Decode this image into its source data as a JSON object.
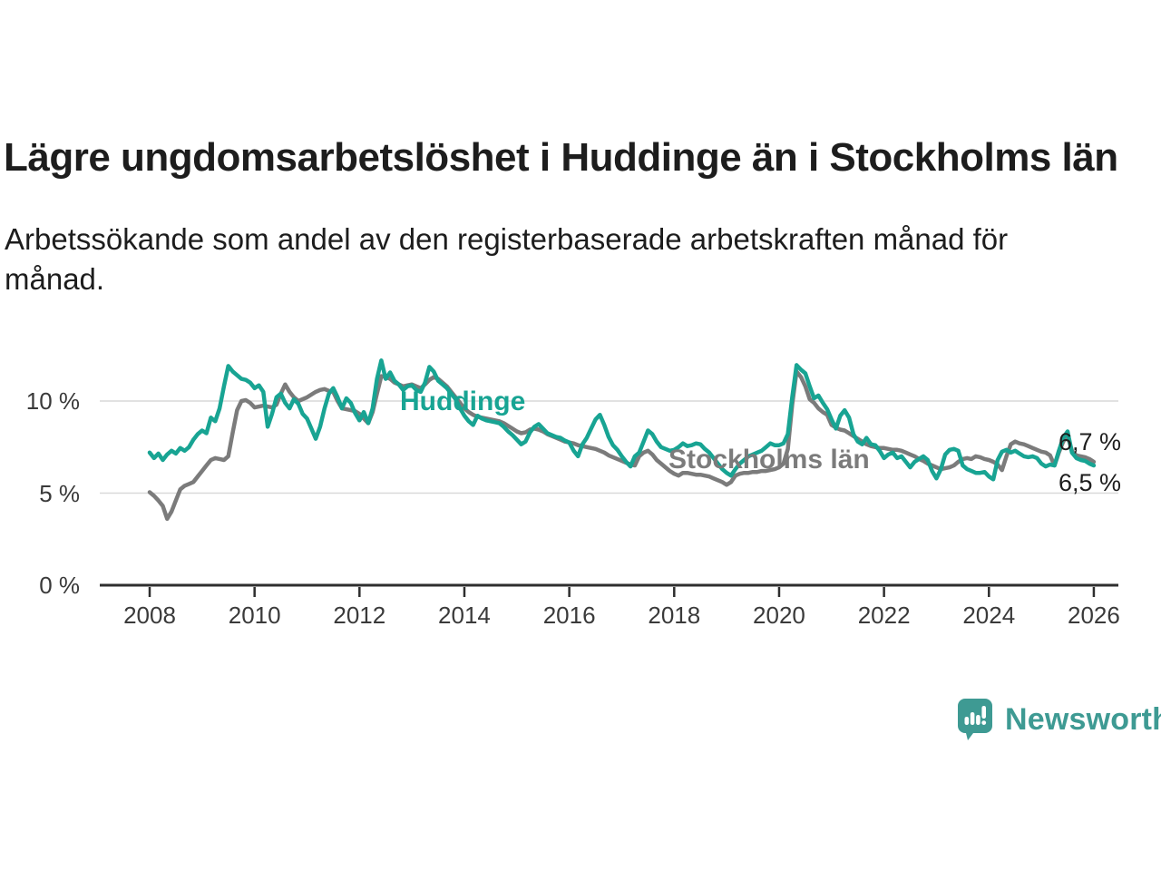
{
  "header": {
    "title": "Lägre ungdomsarbetslöshet i Huddinge än i Stockholms län",
    "subtitle": "Arbetssökande som andel av den registerbaserade arbetskraften månad för månad."
  },
  "colors": {
    "huddinge": "#18a493",
    "stockholm": "#7b7b7b",
    "grid": "#d9d9d9",
    "axis": "#2e2e2e",
    "text": "#1d1d1d",
    "tick_text": "#3a3a3a",
    "brand_teal": "#3e9a93"
  },
  "chart_data": {
    "type": "line",
    "title": "Lägre ungdomsarbetslöshet i Huddinge än i Stockholms län",
    "subtitle": "Arbetssökande som andel av den registerbaserade arbetskraften månad för månad.",
    "unit": "%",
    "grid": "horizontal",
    "legend_position": "inline-labels",
    "x_axis": {
      "tick_years": [
        2008,
        2010,
        2012,
        2014,
        2016,
        2018,
        2020,
        2022,
        2024,
        2026
      ],
      "tick_labels": [
        "2008",
        "2010",
        "2012",
        "2014",
        "2016",
        "2018",
        "2020",
        "2022",
        "2024",
        "2026"
      ],
      "range": [
        2007.05,
        2026.45
      ]
    },
    "y_axis": {
      "tick_values": [
        0,
        5,
        10
      ],
      "tick_labels": [
        "0 %",
        "5 %",
        "10 %"
      ],
      "gridline_values": [
        5,
        10
      ],
      "range": [
        0,
        13.2
      ]
    },
    "series": [
      {
        "name": "Stockholms län",
        "color": "#7b7b7b",
        "end_label": "6,7 %",
        "last_value": 6.7,
        "start_year": 2008,
        "step_months": 1,
        "values": [
          5.05,
          4.85,
          4.6,
          4.3,
          3.6,
          4.0,
          4.6,
          5.2,
          5.4,
          5.5,
          5.6,
          5.9,
          6.2,
          6.5,
          6.8,
          6.9,
          6.85,
          6.8,
          7.0,
          8.3,
          9.5,
          10.0,
          10.05,
          9.9,
          9.65,
          9.7,
          9.75,
          9.7,
          9.65,
          9.8,
          10.4,
          10.9,
          10.5,
          10.2,
          10.0,
          10.1,
          10.2,
          10.35,
          10.5,
          10.6,
          10.65,
          10.55,
          10.5,
          10.0,
          9.6,
          9.55,
          9.5,
          9.45,
          9.3,
          9.05,
          8.8,
          9.4,
          10.4,
          11.35,
          11.3,
          11.2,
          11.0,
          10.9,
          10.8,
          10.85,
          10.9,
          10.8,
          10.7,
          10.9,
          11.15,
          11.3,
          11.2,
          11.0,
          10.8,
          10.5,
          10.2,
          9.9,
          9.6,
          9.4,
          9.25,
          9.15,
          9.1,
          9.05,
          9.0,
          8.95,
          8.9,
          8.8,
          8.65,
          8.5,
          8.35,
          8.25,
          8.3,
          8.45,
          8.5,
          8.45,
          8.35,
          8.2,
          8.1,
          8.0,
          7.9,
          7.8,
          7.75,
          7.7,
          7.6,
          7.55,
          7.5,
          7.45,
          7.4,
          7.3,
          7.2,
          7.05,
          6.95,
          6.85,
          6.75,
          6.65,
          6.55,
          6.5,
          7.0,
          7.2,
          7.3,
          7.1,
          6.8,
          6.6,
          6.4,
          6.2,
          6.05,
          5.95,
          6.1,
          6.1,
          6.05,
          6.0,
          6.0,
          5.95,
          5.9,
          5.8,
          5.7,
          5.6,
          5.45,
          5.6,
          5.95,
          6.05,
          6.1,
          6.1,
          6.15,
          6.15,
          6.2,
          6.2,
          6.25,
          6.3,
          6.4,
          6.6,
          7.4,
          9.8,
          11.6,
          11.3,
          10.8,
          10.1,
          9.9,
          9.6,
          9.4,
          9.25,
          8.7,
          8.55,
          8.45,
          8.4,
          8.25,
          8.1,
          7.95,
          7.8,
          7.65,
          7.55,
          7.5,
          7.45,
          7.45,
          7.4,
          7.35,
          7.35,
          7.3,
          7.2,
          7.1,
          7.0,
          6.85,
          6.75,
          6.6,
          6.5,
          6.4,
          6.3,
          6.35,
          6.4,
          6.5,
          6.7,
          6.85,
          6.9,
          6.85,
          7.0,
          6.95,
          6.85,
          6.8,
          6.7,
          6.55,
          6.25,
          7.0,
          7.65,
          7.8,
          7.7,
          7.65,
          7.55,
          7.45,
          7.35,
          7.25,
          7.2,
          7.05,
          6.5,
          7.2,
          7.8,
          8.1,
          7.3,
          7.05,
          7.0,
          6.95,
          6.85,
          6.7
        ]
      },
      {
        "name": "Huddinge",
        "color": "#18a493",
        "end_label": "6,5 %",
        "last_value": 6.5,
        "start_year": 2008,
        "step_months": 1,
        "values": [
          7.2,
          6.9,
          7.15,
          6.8,
          7.1,
          7.3,
          7.15,
          7.45,
          7.3,
          7.5,
          7.9,
          8.2,
          8.4,
          8.25,
          9.1,
          8.9,
          9.6,
          10.8,
          11.9,
          11.6,
          11.4,
          11.2,
          11.15,
          11.0,
          10.7,
          10.85,
          10.5,
          8.6,
          9.3,
          10.2,
          10.4,
          9.9,
          9.6,
          10.1,
          9.85,
          9.3,
          9.05,
          8.5,
          7.95,
          8.6,
          9.6,
          10.4,
          10.7,
          10.2,
          9.6,
          10.15,
          9.9,
          9.35,
          8.95,
          9.4,
          8.8,
          9.6,
          11.2,
          12.2,
          11.2,
          11.55,
          11.1,
          10.9,
          10.6,
          10.8,
          10.85,
          10.6,
          10.5,
          11.0,
          11.85,
          11.6,
          11.1,
          10.9,
          10.7,
          10.4,
          10.1,
          9.6,
          9.2,
          8.9,
          8.7,
          9.2,
          9.05,
          8.95,
          8.9,
          8.85,
          8.8,
          8.6,
          8.35,
          8.15,
          7.9,
          7.65,
          7.8,
          8.3,
          8.6,
          8.75,
          8.5,
          8.25,
          8.15,
          8.05,
          8.0,
          7.85,
          7.75,
          7.3,
          7.0,
          7.65,
          8.0,
          8.5,
          9.0,
          9.25,
          8.7,
          8.05,
          7.6,
          7.35,
          7.0,
          6.7,
          6.45,
          7.0,
          7.2,
          7.8,
          8.4,
          8.2,
          7.8,
          7.5,
          7.4,
          7.3,
          7.35,
          7.5,
          7.7,
          7.55,
          7.6,
          7.7,
          7.65,
          7.4,
          7.2,
          6.9,
          6.6,
          6.3,
          6.1,
          5.95,
          6.3,
          6.6,
          6.8,
          7.0,
          7.1,
          7.2,
          7.3,
          7.5,
          7.7,
          7.6,
          7.6,
          7.7,
          8.2,
          10.2,
          11.95,
          11.7,
          11.5,
          10.8,
          10.15,
          10.3,
          9.9,
          9.55,
          9.0,
          8.5,
          9.2,
          9.5,
          9.1,
          8.2,
          7.8,
          7.65,
          8.0,
          7.65,
          7.6,
          7.3,
          6.9,
          7.1,
          7.2,
          6.9,
          7.0,
          6.7,
          6.4,
          6.7,
          6.85,
          7.0,
          6.8,
          6.2,
          5.8,
          6.3,
          7.1,
          7.35,
          7.4,
          7.3,
          6.5,
          6.3,
          6.2,
          6.1,
          6.1,
          6.15,
          5.9,
          5.75,
          6.8,
          7.25,
          7.35,
          7.2,
          7.3,
          7.15,
          7.0,
          6.95,
          7.0,
          6.9,
          6.6,
          6.45,
          6.55,
          6.5,
          7.3,
          8.0,
          8.35,
          7.2,
          6.9,
          6.8,
          6.75,
          6.6,
          6.5
        ]
      }
    ],
    "annotations": {
      "huddinge_label": "Huddinge",
      "stockholm_label": "Stockholms län",
      "end_label_top": "6,7 %",
      "end_label_bottom": "6,5 %"
    }
  },
  "branding": {
    "logo_text": "Newsworthy",
    "logo_icon": "bar-chart-speech-bubble-icon",
    "logo_color": "#3e9a93"
  }
}
